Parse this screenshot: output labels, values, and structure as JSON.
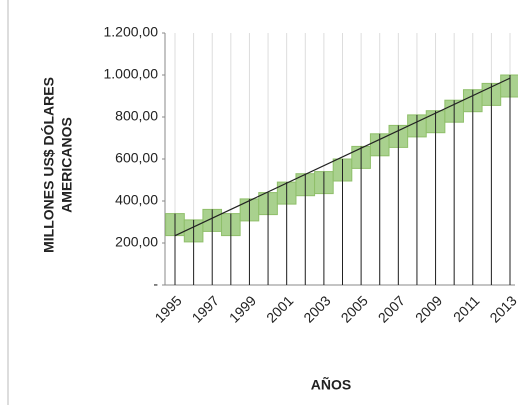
{
  "chart_data": {
    "type": "area",
    "y_label": [
      "MILLONES US$ DÓLARES",
      "AMERICANOS"
    ],
    "x_label": "AÑOS",
    "categories": [
      "1995",
      null,
      "1997",
      null,
      "1999",
      null,
      "2001",
      null,
      "2003",
      null,
      "2005",
      null,
      "2007",
      null,
      "2009",
      null,
      "2011",
      null,
      "2013"
    ],
    "values": [
      340,
      310,
      360,
      340,
      410,
      440,
      490,
      530,
      540,
      600,
      660,
      720,
      760,
      810,
      830,
      880,
      930,
      960,
      1000
    ],
    "color": "#a9d18e",
    "trend": [
      235,
      985
    ],
    "ylim": [
      0,
      1200
    ],
    "yticks": [
      {
        "value": 0,
        "label": "-"
      },
      {
        "value": 200,
        "label": "200,00"
      },
      {
        "value": 400,
        "label": "400,00"
      },
      {
        "value": 600,
        "label": "600,00"
      },
      {
        "value": 800,
        "label": "800,00"
      },
      {
        "value": 1000,
        "label": "1.000,00"
      },
      {
        "value": 1200,
        "label": "1.200,00"
      }
    ]
  }
}
